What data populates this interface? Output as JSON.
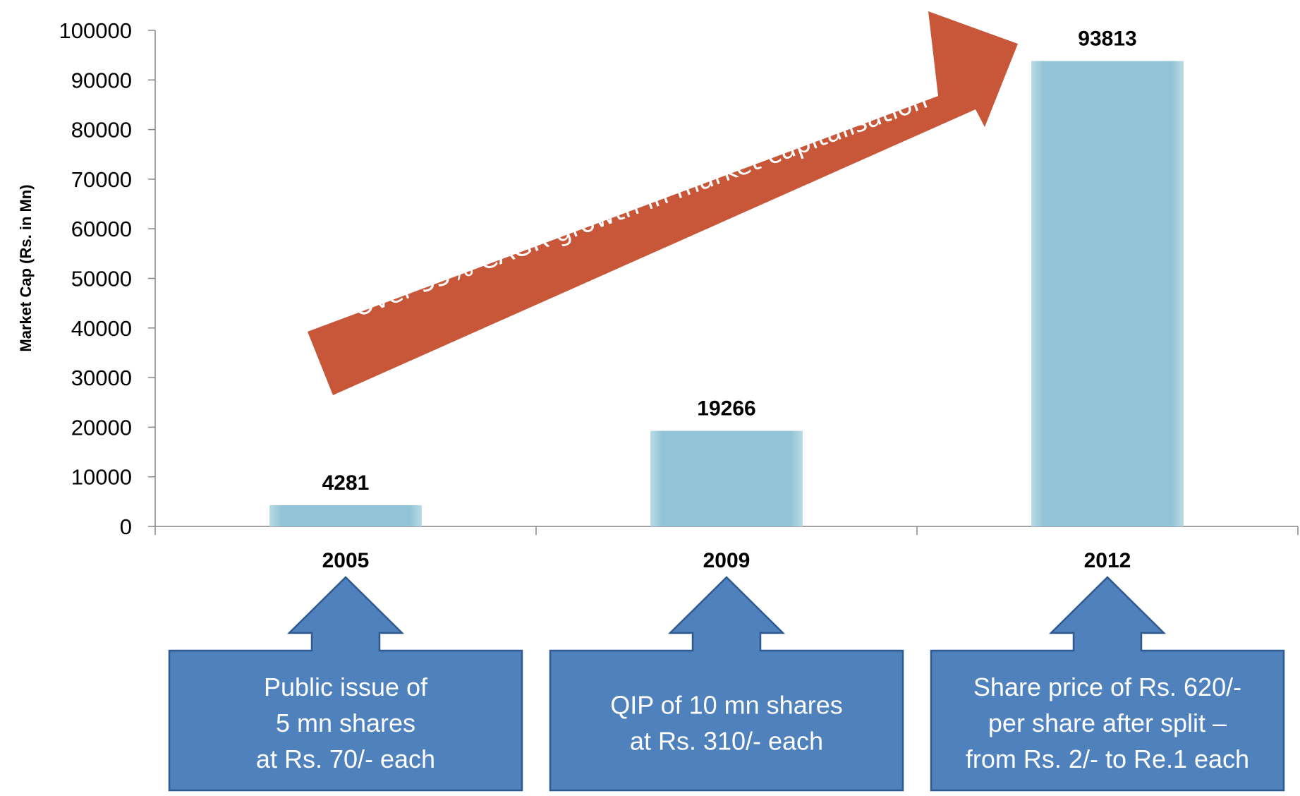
{
  "chart_data": {
    "type": "bar",
    "categories": [
      "2005",
      "2009",
      "2012"
    ],
    "values": [
      4281,
      19266,
      93813
    ],
    "ylabel": "Market Cap (Rs. in Mn)",
    "xlabel": "",
    "ylim": [
      0,
      100000
    ],
    "yticks": [
      0,
      10000,
      20000,
      30000,
      40000,
      50000,
      60000,
      70000,
      80000,
      90000,
      100000
    ],
    "data_labels": true,
    "grid": false,
    "bar_color": "#93c3d6",
    "annotation": {
      "text": "Over 55% CAGR growth in market capitalisation",
      "color": "#c8573a"
    },
    "callouts": [
      {
        "category": "2005",
        "lines": [
          "Public issue of",
          "5 mn shares",
          "at Rs. 70/- each"
        ]
      },
      {
        "category": "2009",
        "lines": [
          "QIP of 10 mn shares",
          "at Rs. 310/- each"
        ]
      },
      {
        "category": "2012",
        "lines": [
          "Share price of Rs. 620/-",
          "per share after split –",
          "from Rs. 2/- to Re.1 each"
        ]
      }
    ],
    "callout_color": "#4f81bd"
  }
}
